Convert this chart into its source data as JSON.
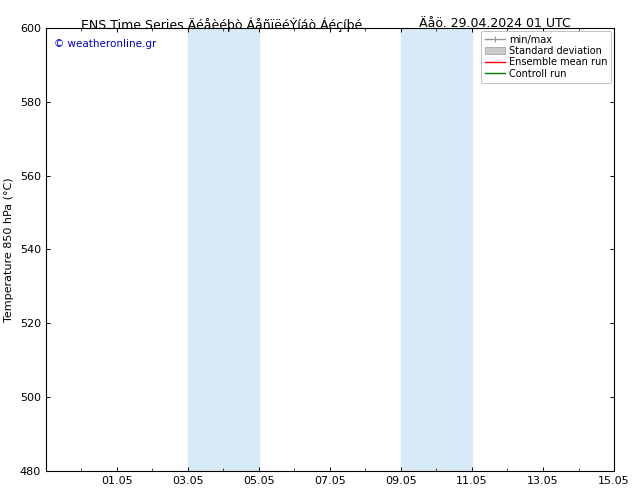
{
  "title_left_raw": "ENS Time Series Äéåèéþò ÁåñïëéÝíáò Áéçíþé",
  "title_right_raw": "Äåö. 29.04.2024 01 UTC",
  "ylabel": "Temperature 850 hPa (°C)",
  "watermark": "© weatheronline.gr",
  "ylim": [
    480,
    600
  ],
  "yticks": [
    480,
    500,
    520,
    540,
    560,
    580,
    600
  ],
  "xtick_labels": [
    "01.05",
    "03.05",
    "05.05",
    "07.05",
    "09.05",
    "11.05",
    "13.05",
    "15.05"
  ],
  "xtick_positions": [
    2,
    4,
    6,
    8,
    10,
    12,
    14,
    16
  ],
  "xlim": [
    0,
    16
  ],
  "band1": [
    4,
    6
  ],
  "band2": [
    10,
    12
  ],
  "band_color": "#d8eaf8",
  "background_color": "#ffffff",
  "tick_fontsize": 8,
  "label_fontsize": 8,
  "title_fontsize": 9,
  "legend_fontsize": 7,
  "watermark_color": "#0000cc",
  "grid_color": "#aaaaaa",
  "spine_color": "#000000"
}
